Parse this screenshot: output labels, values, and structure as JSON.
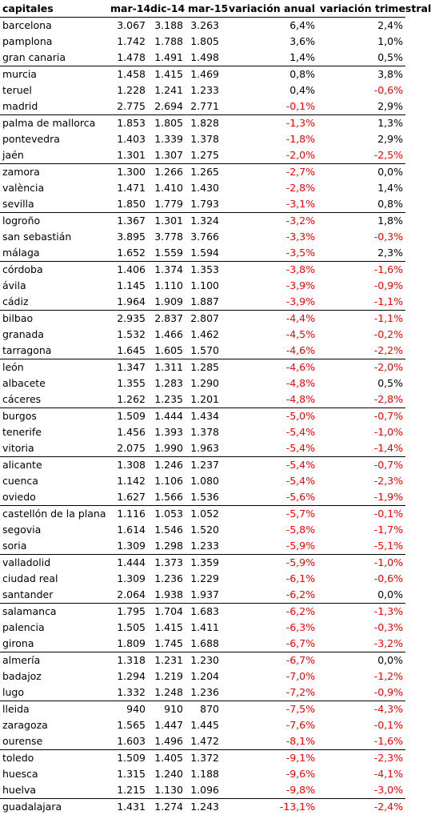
{
  "headers": [
    "capitales",
    "mar-14",
    "dic-14",
    "mar-15",
    "variación anual",
    "variación trimestral"
  ],
  "colors": {
    "negative": "#ff0000",
    "text": "#000000",
    "rule": "#000000"
  },
  "rows": [
    [
      "barcelona",
      "3.067",
      "3.188",
      "3.263",
      "6,4%",
      "2,4%"
    ],
    [
      "pamplona",
      "1.742",
      "1.788",
      "1.805",
      "3,6%",
      "1,0%"
    ],
    [
      "gran canaria",
      "1.478",
      "1.491",
      "1.498",
      "1,4%",
      "0,5%"
    ],
    [
      "murcia",
      "1.458",
      "1.415",
      "1.469",
      "0,8%",
      "3,8%"
    ],
    [
      "teruel",
      "1.228",
      "1.241",
      "1.233",
      "0,4%",
      "-0,6%"
    ],
    [
      "madrid",
      "2.775",
      "2.694",
      "2.771",
      "-0,1%",
      "2,9%"
    ],
    [
      "palma de mallorca",
      "1.853",
      "1.805",
      "1.828",
      "-1,3%",
      "1,3%"
    ],
    [
      "pontevedra",
      "1.403",
      "1.339",
      "1.378",
      "-1,8%",
      "2,9%"
    ],
    [
      "jaén",
      "1.301",
      "1.307",
      "1.275",
      "-2,0%",
      "-2,5%"
    ],
    [
      "zamora",
      "1.300",
      "1.266",
      "1.265",
      "-2,7%",
      "0,0%"
    ],
    [
      "valència",
      "1.471",
      "1.410",
      "1.430",
      "-2,8%",
      "1,4%"
    ],
    [
      "sevilla",
      "1.850",
      "1.779",
      "1.793",
      "-3,1%",
      "0,8%"
    ],
    [
      "logroño",
      "1.367",
      "1.301",
      "1.324",
      "-3,2%",
      "1,8%"
    ],
    [
      "san sebastián",
      "3.895",
      "3.778",
      "3.766",
      "-3,3%",
      "-0,3%"
    ],
    [
      "málaga",
      "1.652",
      "1.559",
      "1.594",
      "-3,5%",
      "2,3%"
    ],
    [
      "córdoba",
      "1.406",
      "1.374",
      "1.353",
      "-3,8%",
      "-1,6%"
    ],
    [
      "ávila",
      "1.145",
      "1.110",
      "1.100",
      "-3,9%",
      "-0,9%"
    ],
    [
      "cádiz",
      "1.964",
      "1.909",
      "1.887",
      "-3,9%",
      "-1,1%"
    ],
    [
      "bilbao",
      "2.935",
      "2.837",
      "2.807",
      "-4,4%",
      "-1,1%"
    ],
    [
      "granada",
      "1.532",
      "1.466",
      "1.462",
      "-4,5%",
      "-0,2%"
    ],
    [
      "tarragona",
      "1.645",
      "1.605",
      "1.570",
      "-4,6%",
      "-2,2%"
    ],
    [
      "león",
      "1.347",
      "1.311",
      "1.285",
      "-4,6%",
      "-2,0%"
    ],
    [
      "albacete",
      "1.355",
      "1.283",
      "1.290",
      "-4,8%",
      "0,5%"
    ],
    [
      "cáceres",
      "1.262",
      "1.235",
      "1.201",
      "-4,8%",
      "-2,8%"
    ],
    [
      "burgos",
      "1.509",
      "1.444",
      "1.434",
      "-5,0%",
      "-0,7%"
    ],
    [
      "tenerife",
      "1.456",
      "1.393",
      "1.378",
      "-5,4%",
      "-1,0%"
    ],
    [
      "vitoria",
      "2.075",
      "1.990",
      "1.963",
      "-5,4%",
      "-1,4%"
    ],
    [
      "alicante",
      "1.308",
      "1.246",
      "1.237",
      "-5,4%",
      "-0,7%"
    ],
    [
      "cuenca",
      "1.142",
      "1.106",
      "1.080",
      "-5,4%",
      "-2,3%"
    ],
    [
      "oviedo",
      "1.627",
      "1.566",
      "1.536",
      "-5,6%",
      "-1,9%"
    ],
    [
      "castellón de la plana",
      "1.116",
      "1.053",
      "1.052",
      "-5,7%",
      "-0,1%"
    ],
    [
      "segovia",
      "1.614",
      "1.546",
      "1.520",
      "-5,8%",
      "-1,7%"
    ],
    [
      "soria",
      "1.309",
      "1.298",
      "1.233",
      "-5,9%",
      "-5,1%"
    ],
    [
      "valladolid",
      "1.444",
      "1.373",
      "1.359",
      "-5,9%",
      "-1,0%"
    ],
    [
      "ciudad real",
      "1.309",
      "1.236",
      "1.229",
      "-6,1%",
      "-0,6%"
    ],
    [
      "santander",
      "2.064",
      "1.938",
      "1.937",
      "-6,2%",
      "0,0%"
    ],
    [
      "salamanca",
      "1.795",
      "1.704",
      "1.683",
      "-6,2%",
      "-1,3%"
    ],
    [
      "palencia",
      "1.505",
      "1.415",
      "1.411",
      "-6,3%",
      "-0,3%"
    ],
    [
      "girona",
      "1.809",
      "1.745",
      "1.688",
      "-6,7%",
      "-3,2%"
    ],
    [
      "almería",
      "1.318",
      "1.231",
      "1.230",
      "-6,7%",
      "0,0%"
    ],
    [
      "badajoz",
      "1.294",
      "1.219",
      "1.204",
      "-7,0%",
      "-1,2%"
    ],
    [
      "lugo",
      "1.332",
      "1.248",
      "1.236",
      "-7,2%",
      "-0,9%"
    ],
    [
      "lleida",
      "940",
      "910",
      "870",
      "-7,5%",
      "-4,3%"
    ],
    [
      "zaragoza",
      "1.565",
      "1.447",
      "1.445",
      "-7,6%",
      "-0,1%"
    ],
    [
      "ourense",
      "1.603",
      "1.496",
      "1.472",
      "-8,1%",
      "-1,6%"
    ],
    [
      "toledo",
      "1.509",
      "1.405",
      "1.372",
      "-9,1%",
      "-2,3%"
    ],
    [
      "huesca",
      "1.315",
      "1.240",
      "1.188",
      "-9,6%",
      "-4,1%"
    ],
    [
      "huelva",
      "1.215",
      "1.130",
      "1.096",
      "-9,8%",
      "-3,0%"
    ],
    [
      "guadalajara",
      "1.431",
      "1.274",
      "1.243",
      "-13,1%",
      "-2,4%"
    ]
  ]
}
